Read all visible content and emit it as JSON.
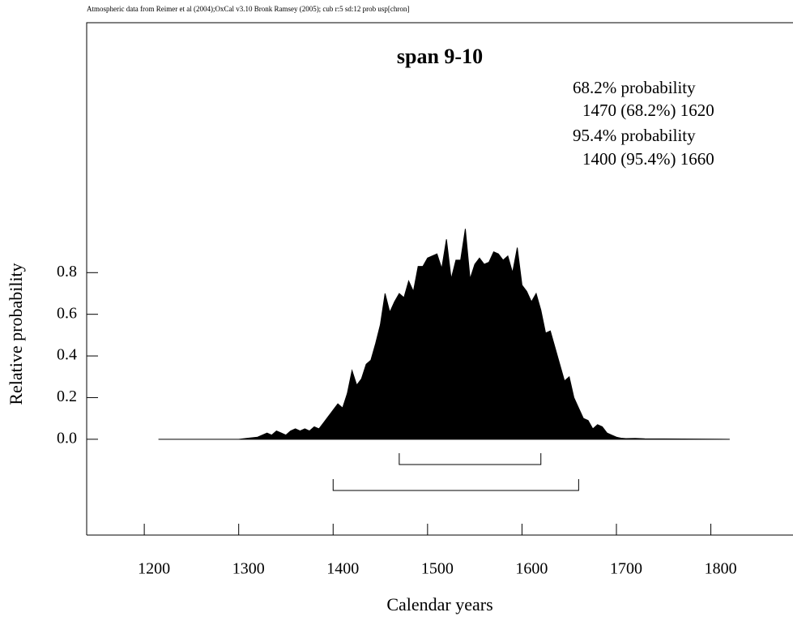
{
  "chart_data": {
    "type": "area",
    "header": "Atmospheric data from Reimer et al (2004);OxCal v3.10 Bronk Ramsey (2005); cub r:5 sd:12 prob usp[chron]",
    "title": "span 9-10",
    "xlabel": "Calendar years",
    "ylabel": "Relative probability",
    "annotations": [
      "68.2% probability",
      "1470 (68.2%) 1620",
      "95.4% probability",
      "1400 (95.4%) 1660"
    ],
    "color": "#000000",
    "xlim": [
      1139,
      1887
    ],
    "ylim": [
      -0.46,
      2.0
    ],
    "xticks": [
      1200,
      1300,
      1400,
      1500,
      1600,
      1700,
      1800
    ],
    "yticks": [
      {
        "value": 0,
        "label": "0.0"
      },
      0.2,
      0.4,
      0.6,
      0.8
    ],
    "x": [
      1215,
      1300,
      1310,
      1320,
      1330,
      1335,
      1340,
      1345,
      1350,
      1355,
      1360,
      1365,
      1370,
      1375,
      1380,
      1385,
      1390,
      1395,
      1400,
      1405,
      1410,
      1415,
      1420,
      1425,
      1430,
      1435,
      1440,
      1445,
      1450,
      1455,
      1460,
      1465,
      1470,
      1475,
      1480,
      1485,
      1490,
      1495,
      1500,
      1505,
      1510,
      1515,
      1520,
      1525,
      1530,
      1535,
      1540,
      1545,
      1550,
      1555,
      1560,
      1565,
      1570,
      1575,
      1580,
      1585,
      1590,
      1595,
      1600,
      1605,
      1610,
      1615,
      1620,
      1625,
      1630,
      1635,
      1640,
      1645,
      1650,
      1655,
      1660,
      1665,
      1670,
      1675,
      1680,
      1685,
      1690,
      1695,
      1700,
      1705,
      1710,
      1720,
      1730,
      1820
    ],
    "values": [
      0,
      0,
      0.005,
      0.01,
      0.03,
      0.02,
      0.04,
      0.03,
      0.02,
      0.04,
      0.05,
      0.04,
      0.05,
      0.04,
      0.06,
      0.05,
      0.08,
      0.11,
      0.14,
      0.17,
      0.15,
      0.22,
      0.33,
      0.26,
      0.29,
      0.36,
      0.38,
      0.46,
      0.55,
      0.7,
      0.61,
      0.66,
      0.7,
      0.68,
      0.76,
      0.71,
      0.83,
      0.83,
      0.87,
      0.88,
      0.89,
      0.82,
      0.96,
      0.77,
      0.86,
      0.86,
      1.01,
      0.77,
      0.84,
      0.87,
      0.84,
      0.85,
      0.9,
      0.89,
      0.86,
      0.88,
      0.8,
      0.92,
      0.74,
      0.71,
      0.66,
      0.7,
      0.62,
      0.51,
      0.52,
      0.44,
      0.36,
      0.28,
      0.3,
      0.2,
      0.15,
      0.1,
      0.09,
      0.05,
      0.07,
      0.06,
      0.03,
      0.02,
      0.01,
      0.005,
      0.003,
      0.004,
      0.002,
      0
    ],
    "ranges": [
      {
        "from": 1470,
        "to": 1620
      },
      {
        "from": 1400,
        "to": 1660
      }
    ]
  }
}
